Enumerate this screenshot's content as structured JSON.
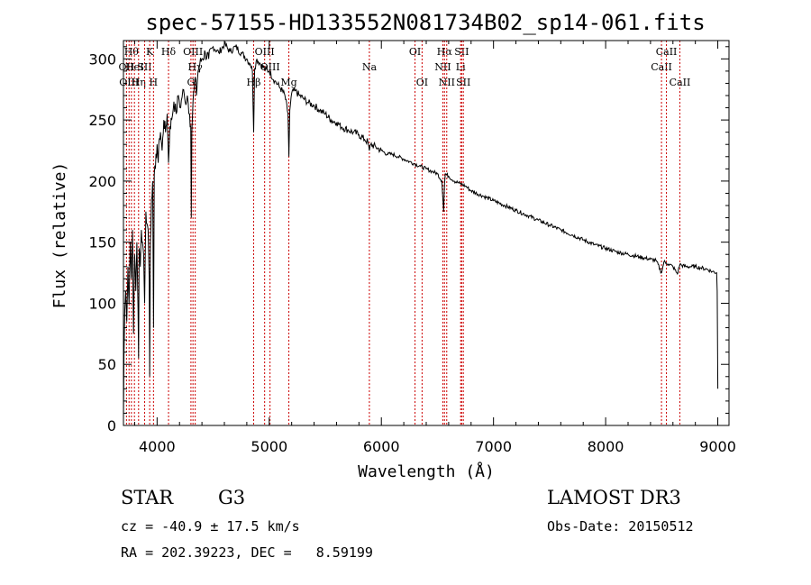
{
  "chart_data": {
    "type": "line",
    "title": "spec-57155-HD133552N081734B02_sp14-061.fits",
    "xlabel": "Wavelength (Å)",
    "ylabel": "Flux (relative)",
    "xlim": [
      3700,
      9100
    ],
    "ylim": [
      0,
      315
    ],
    "xticks": [
      4000,
      5000,
      6000,
      7000,
      8000,
      9000
    ],
    "yticks": [
      0,
      50,
      100,
      150,
      200,
      250,
      300
    ],
    "series": [
      {
        "name": "spectrum",
        "x": [
          3700,
          3705,
          3712,
          3720,
          3730,
          3740,
          3750,
          3760,
          3770,
          3780,
          3790,
          3800,
          3810,
          3820,
          3830,
          3835,
          3840,
          3850,
          3860,
          3870,
          3880,
          3889,
          3900,
          3910,
          3920,
          3930,
          3934,
          3940,
          3950,
          3960,
          3968,
          3975,
          3985,
          4000,
          4010,
          4020,
          4030,
          4045,
          4060,
          4075,
          4090,
          4102,
          4115,
          4130,
          4150,
          4170,
          4190,
          4210,
          4230,
          4250,
          4270,
          4290,
          4300,
          4305,
          4310,
          4320,
          4330,
          4340,
          4350,
          4365,
          4380,
          4400,
          4430,
          4460,
          4500,
          4550,
          4600,
          4650,
          4700,
          4750,
          4800,
          4830,
          4850,
          4861,
          4870,
          4890,
          4920,
          4957,
          5000,
          5050,
          5100,
          5140,
          5167,
          5175,
          5183,
          5200,
          5230,
          5270,
          5300,
          5350,
          5400,
          5450,
          5500,
          5550,
          5600,
          5650,
          5700,
          5750,
          5800,
          5850,
          5880,
          5893,
          5905,
          5950,
          6000,
          6050,
          6100,
          6150,
          6200,
          6250,
          6300,
          6350,
          6400,
          6450,
          6500,
          6540,
          6555,
          6563,
          6570,
          6600,
          6650,
          6700,
          6750,
          6800,
          6900,
          7000,
          7100,
          7200,
          7300,
          7400,
          7500,
          7600,
          7700,
          7800,
          7900,
          8000,
          8100,
          8200,
          8300,
          8400,
          8450,
          8498,
          8520,
          8542,
          8560,
          8600,
          8640,
          8662,
          8680,
          8720,
          8760,
          8800,
          8850,
          8900,
          8950,
          8990,
          8995,
          9000
        ],
        "y": [
          5,
          60,
          95,
          110,
          85,
          130,
          100,
          150,
          120,
          160,
          75,
          140,
          110,
          150,
          95,
          55,
          145,
          130,
          160,
          150,
          140,
          100,
          175,
          165,
          160,
          120,
          40,
          150,
          185,
          200,
          80,
          205,
          210,
          230,
          215,
          235,
          240,
          225,
          250,
          240,
          255,
          215,
          245,
          250,
          265,
          255,
          270,
          260,
          275,
          265,
          270,
          255,
          245,
          170,
          240,
          265,
          275,
          285,
          270,
          290,
          295,
          300,
          305,
          300,
          310,
          305,
          312,
          306,
          310,
          305,
          300,
          296,
          290,
          240,
          292,
          300,
          296,
          292,
          290,
          282,
          276,
          270,
          255,
          220,
          258,
          272,
          274,
          270,
          268,
          264,
          262,
          258,
          255,
          250,
          248,
          244,
          242,
          240,
          238,
          234,
          232,
          225,
          230,
          228,
          225,
          222,
          222,
          220,
          218,
          216,
          214,
          212,
          210,
          208,
          206,
          200,
          175,
          198,
          206,
          204,
          200,
          198,
          196,
          192,
          188,
          184,
          180,
          176,
          172,
          168,
          164,
          160,
          156,
          152,
          148,
          145,
          142,
          140,
          138,
          136,
          135,
          125,
          134,
          133,
          132,
          130,
          124,
          132,
          131,
          130,
          130,
          130,
          129,
          128,
          126,
          125,
          110,
          30
        ]
      }
    ],
    "lines": [
      {
        "wave": 3727,
        "label": "OII",
        "row": 2
      },
      {
        "wave": 3750,
        "label": "OIII",
        "row": 3
      },
      {
        "wave": 3771,
        "label": "Hθ",
        "row": 1
      },
      {
        "wave": 3798,
        "label": "HeI",
        "row": 2
      },
      {
        "wave": 3835,
        "label": "Hη",
        "row": 3
      },
      {
        "wave": 3889,
        "label": "SII",
        "row": 2
      },
      {
        "wave": 3934,
        "label": "K",
        "row": 1
      },
      {
        "wave": 3968,
        "label": "H",
        "row": 3
      },
      {
        "wave": 4102,
        "label": "Hδ",
        "row": 1
      },
      {
        "wave": 4302,
        "label": "G",
        "row": 3
      },
      {
        "wave": 4320,
        "label": "OIII",
        "row": 1
      },
      {
        "wave": 4340,
        "label": "Hγ",
        "row": 2
      },
      {
        "wave": 4861,
        "label": "Hβ",
        "row": 3
      },
      {
        "wave": 4959,
        "label": "OIII",
        "row": 1
      },
      {
        "wave": 5007,
        "label": "OIII",
        "row": 2
      },
      {
        "wave": 5175,
        "label": "Mg",
        "row": 3
      },
      {
        "wave": 5893,
        "label": "Na",
        "row": 2
      },
      {
        "wave": 6300,
        "label": "OI",
        "row": 1
      },
      {
        "wave": 6363,
        "label": "OI",
        "row": 3
      },
      {
        "wave": 6548,
        "label": "NII",
        "row": 2
      },
      {
        "wave": 6563,
        "label": "Hα",
        "row": 1
      },
      {
        "wave": 6583,
        "label": "NII",
        "row": 3
      },
      {
        "wave": 6707,
        "label": "Li",
        "row": 2
      },
      {
        "wave": 6716,
        "label": "SII",
        "row": 1
      },
      {
        "wave": 6731,
        "label": "SII",
        "row": 3
      },
      {
        "wave": 8498,
        "label": "CaII",
        "row": 2
      },
      {
        "wave": 8542,
        "label": "CaII",
        "row": 1
      },
      {
        "wave": 8662,
        "label": "CaII",
        "row": 3
      }
    ]
  },
  "info": {
    "object_type": "STAR",
    "subclass": "G3",
    "survey": "LAMOST DR3",
    "cz": "cz = -40.9 ± 17.5 km/s",
    "obs_date": "Obs-Date: 20150512",
    "coords": "RA = 202.39223, DEC =   8.59199"
  },
  "colors": {
    "spectrum": "#000000",
    "line_marker": "#cc0000",
    "axes": "#000000"
  }
}
